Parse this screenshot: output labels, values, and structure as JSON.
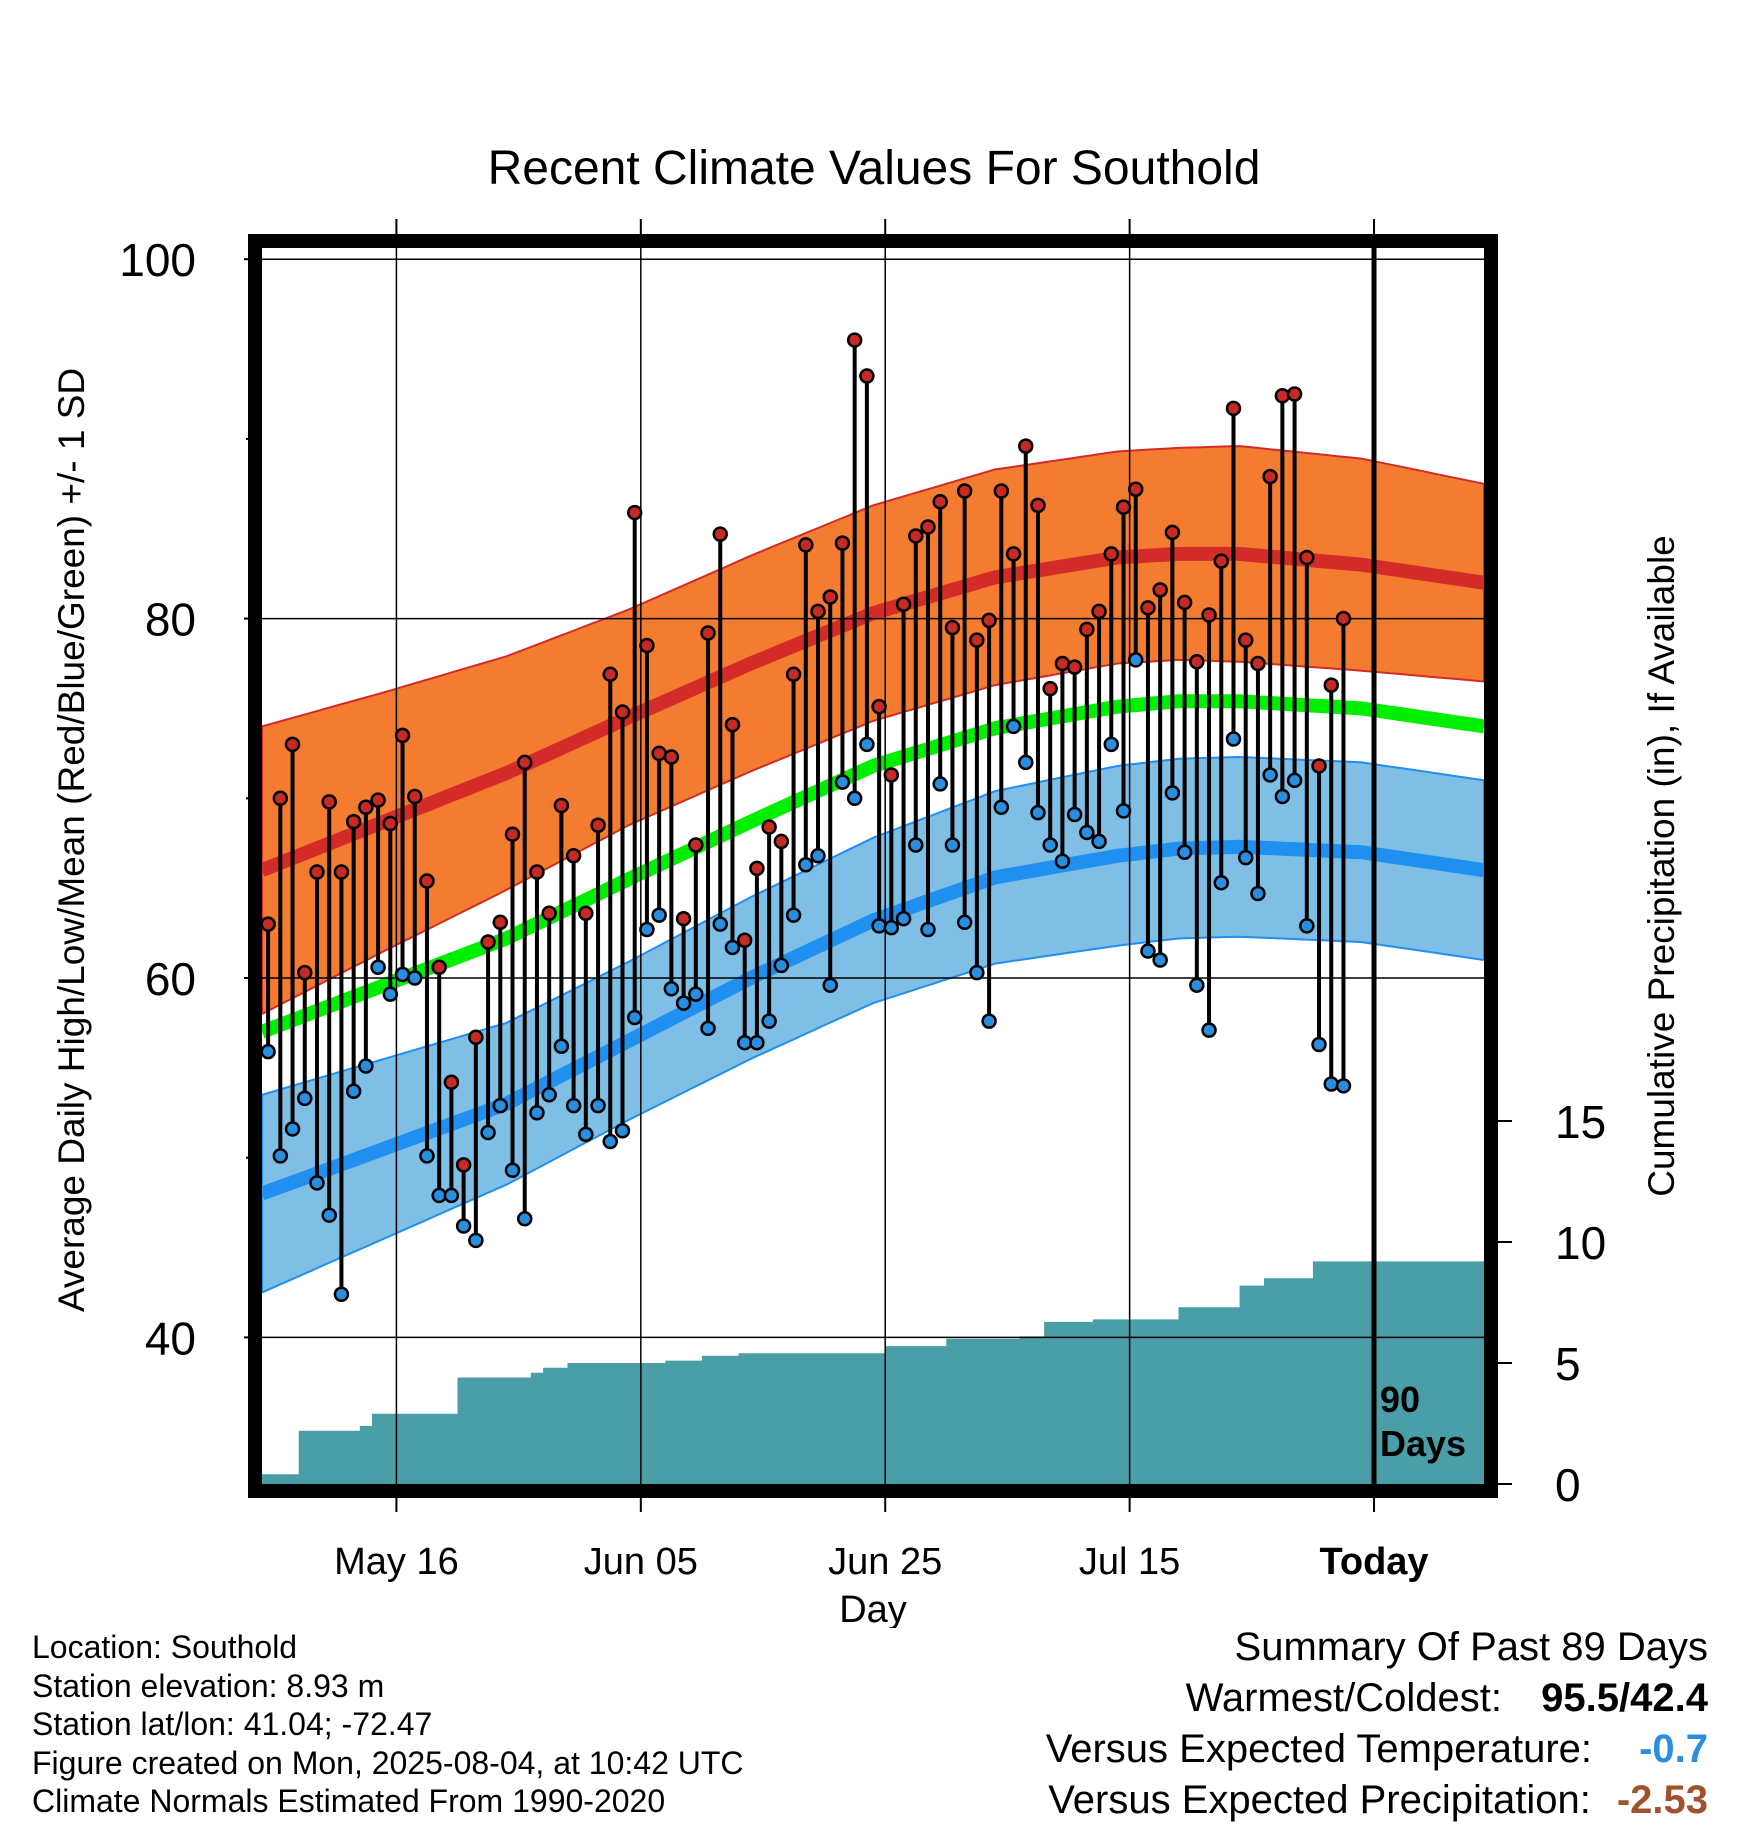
{
  "chart_data": {
    "type": "line",
    "title": "Recent Climate Values For Southold",
    "xlabel": "Day",
    "ylabel_left": "Average Daily High/Low/Mean (Red/Blue/Green) +/- 1 SD",
    "ylabel_right": "Cumulative Precipitation (in), If Available",
    "x_ticks": [
      {
        "day": 11,
        "label": "May 16"
      },
      {
        "day": 31,
        "label": "Jun 05"
      },
      {
        "day": 51,
        "label": "Jun 25"
      },
      {
        "day": 71,
        "label": "Jul 15"
      },
      {
        "day": 91,
        "label": "Today"
      }
    ],
    "x_range": [
      0,
      100
    ],
    "y_left_range": [
      33,
      100
    ],
    "y_left_ticks": [
      40,
      60,
      80,
      100
    ],
    "y_left_minor": [
      50,
      70,
      90
    ],
    "y_right_ticks": [
      0,
      5,
      10,
      15
    ],
    "today_day": 91,
    "today_label": [
      "90",
      "Days"
    ],
    "normals": {
      "days": [
        0,
        10,
        20,
        30,
        40,
        50,
        60,
        70,
        75,
        80,
        90,
        100
      ],
      "high_mean": [
        66,
        68.7,
        71.4,
        74.5,
        77.5,
        80.3,
        82.3,
        83.4,
        83.6,
        83.6,
        83.0,
        82.0
      ],
      "high_sd": [
        8,
        7.2,
        6.5,
        6.0,
        6.0,
        6.0,
        6.0,
        5.9,
        5.9,
        6.0,
        5.9,
        5.5
      ],
      "low_mean": [
        48,
        50.5,
        53.0,
        56.5,
        60.0,
        63.2,
        65.6,
        66.8,
        67.2,
        67.3,
        67.0,
        66.0
      ],
      "low_sd": [
        5.5,
        5.0,
        4.5,
        4.4,
        4.5,
        4.6,
        4.8,
        5.0,
        5.0,
        5.0,
        5.0,
        5.0
      ],
      "mean": [
        57,
        59.6,
        62.2,
        65.5,
        68.7,
        71.8,
        73.9,
        75.1,
        75.4,
        75.4,
        75.0,
        74.0
      ]
    },
    "daily_high": [
      63,
      70,
      73,
      60.3,
      65.9,
      69.8,
      65.9,
      68.7,
      69.5,
      69.9,
      68.6,
      73.5,
      70.1,
      65.4,
      60.6,
      54.2,
      49.6,
      56.7,
      62,
      63.1,
      68,
      72,
      65.9,
      63.6,
      69.6,
      66.8,
      63.6,
      68.5,
      76.9,
      74.8,
      85.9,
      78.5,
      72.5,
      72.3,
      63.3,
      67.4,
      79.2,
      84.7,
      74.1,
      62.1,
      66.1,
      68.4,
      67.6,
      76.9,
      84.1,
      80.4,
      81.2,
      84.2,
      95.5,
      93.5,
      75.1,
      71.3,
      80.8,
      84.6,
      85.1,
      86.5,
      79.5,
      87.1,
      78.8,
      79.9,
      87.1,
      83.6,
      89.6,
      86.3,
      76.1,
      77.5,
      77.3,
      79.4,
      80.4,
      83.6,
      86.2,
      87.2,
      80.6,
      81.6,
      84.8,
      80.9,
      77.6,
      80.2,
      83.2,
      91.7,
      78.8,
      77.5,
      87.9,
      92.4,
      92.5,
      83.4,
      71.8,
      76.3,
      80
    ],
    "daily_low": [
      55.9,
      50.1,
      51.6,
      53.3,
      48.6,
      46.8,
      42.4,
      53.7,
      55.1,
      60.6,
      59.1,
      60.2,
      60,
      50.1,
      47.9,
      47.9,
      46.2,
      45.4,
      51.4,
      52.9,
      49.3,
      46.6,
      52.5,
      53.5,
      56.2,
      52.9,
      51.3,
      52.9,
      50.9,
      51.5,
      57.8,
      62.7,
      63.5,
      59.4,
      58.6,
      59.1,
      57.2,
      63,
      61.7,
      56.4,
      56.4,
      57.6,
      60.7,
      63.5,
      66.3,
      66.8,
      59.6,
      70.9,
      70,
      73,
      62.9,
      62.8,
      63.3,
      67.4,
      62.7,
      70.8,
      67.4,
      63.1,
      60.3,
      57.6,
      69.5,
      74,
      72,
      69.2,
      67.4,
      66.5,
      69.1,
      68.1,
      67.6,
      73,
      69.3,
      77.7,
      61.5,
      61,
      70.3,
      67,
      59.6,
      57.1,
      65.3,
      73.3,
      66.7,
      64.7,
      71.3,
      70.1,
      71,
      62.9,
      56.3,
      54.1,
      54
    ],
    "cumulative_precip_in": [
      0.4,
      0.4,
      0.4,
      2.2,
      2.2,
      2.2,
      2.2,
      2.2,
      2.4,
      2.9,
      2.9,
      2.9,
      2.9,
      2.9,
      2.9,
      2.9,
      4.4,
      4.4,
      4.4,
      4.4,
      4.4,
      4.4,
      4.6,
      4.8,
      4.8,
      5.0,
      5.0,
      5.0,
      5.0,
      5.0,
      5.0,
      5.0,
      5.0,
      5.1,
      5.1,
      5.1,
      5.3,
      5.3,
      5.3,
      5.4,
      5.4,
      5.4,
      5.4,
      5.4,
      5.4,
      5.4,
      5.4,
      5.4,
      5.4,
      5.4,
      5.4,
      5.7,
      5.7,
      5.7,
      5.7,
      5.7,
      6.0,
      6.0,
      6.0,
      6.0,
      6.0,
      6.0,
      6.1,
      6.1,
      6.7,
      6.7,
      6.7,
      6.7,
      6.8,
      6.8,
      6.8,
      6.8,
      6.8,
      6.8,
      6.8,
      7.3,
      7.3,
      7.3,
      7.3,
      7.3,
      8.2,
      8.2,
      8.5,
      8.5,
      8.5,
      8.5,
      9.2,
      9.2,
      9.2,
      9.2,
      9.2,
      9.2,
      9.2,
      9.2,
      9.2,
      9.2,
      9.2,
      9.2,
      9.2,
      9.2,
      9.2
    ],
    "colors": {
      "high_band": "#f47c30",
      "high_line": "#d32b27",
      "mean_line": "#00ef00",
      "low_band": "#7fbfe6",
      "low_line": "#1f8ff0",
      "precip": "#4a9ea7",
      "high_marker": "#c52a25",
      "low_marker": "#2a8ee0"
    }
  },
  "info": {
    "location": "Location: Southold",
    "elevation": "Station elevation: 8.93 m",
    "latlon": "Station lat/lon: 41.04; -72.47",
    "created": "Figure created on Mon, 2025-08-04, at 10:42 UTC",
    "normals": "Climate Normals Estimated From 1990-2020"
  },
  "summary": {
    "title": "Summary Of Past 89 Days",
    "warm_cold_label": "Warmest/Coldest:",
    "warm": "95.5",
    "slash": "/",
    "cold": "42.4",
    "temp_label": "Versus Expected Temperature:",
    "temp_value": "-0.7",
    "temp_color": "#2a8ee0",
    "precip_label": "Versus Expected Precipitation:",
    "precip_value": "-2.53",
    "precip_color": "#a0522d"
  }
}
